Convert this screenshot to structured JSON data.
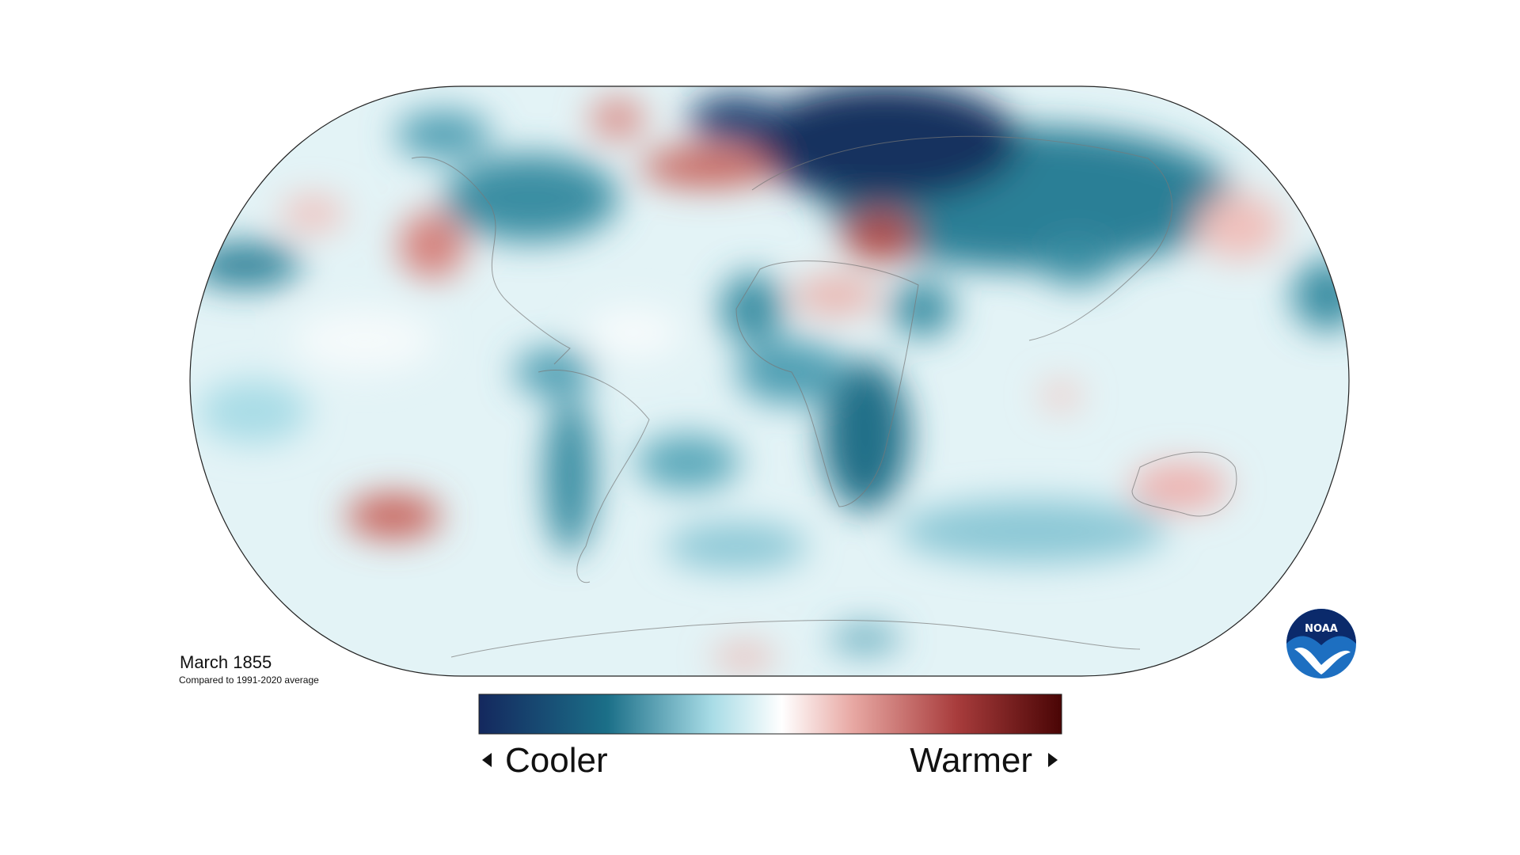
{
  "map": {
    "title": "March 1855",
    "subtitle": "Compared to 1991-2020 average"
  },
  "legend": {
    "low_label": "Cooler",
    "high_label": "Warmer"
  },
  "logo": {
    "text": "NOAA"
  }
}
